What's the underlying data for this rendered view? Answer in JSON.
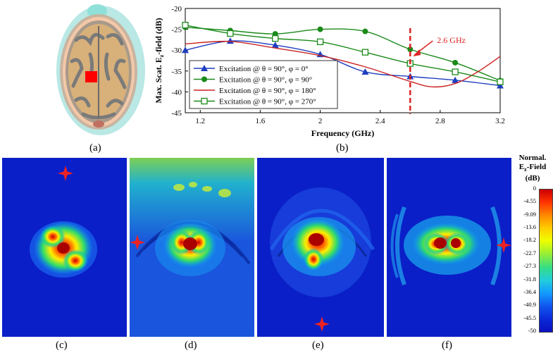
{
  "panels": {
    "a": "(a)",
    "b": "(b)",
    "c": "(c)",
    "d": "(d)",
    "e": "(e)",
    "f": "(f)"
  },
  "colors": {
    "series_phi0": "#1f3fbf",
    "series_phi90": "#1a8a1a",
    "series_phi180": "#cc2222",
    "series_phi270": "#1a8a1a",
    "marker_line": "#dd2222",
    "field_background": "#0a1fc8",
    "source_star": "#ee2222",
    "brain_skin": "#f4c8a8",
    "brain_gray": "#808080",
    "brain_white": "#d8b07a",
    "cyan_shell": "#7fd6d0",
    "target_red": "#ff0000"
  },
  "chart_data": {
    "type": "line",
    "xlabel": "Frequency (GHz)",
    "ylabel": "Max. Scat. Ez-field (dB)",
    "ylabel_parts": [
      "Max. Scat. E",
      "z",
      "-field (dB)"
    ],
    "xlim": [
      1.1,
      3.2
    ],
    "ylim": [
      -45,
      -20
    ],
    "xticks": [
      1.2,
      1.6,
      2.0,
      2.4,
      2.8,
      3.2
    ],
    "xtick_labels": [
      "1.2",
      "1.6",
      "2",
      "2.4",
      "2.8",
      "3.2"
    ],
    "yticks": [
      -45,
      -40,
      -35,
      -30,
      -25,
      -20
    ],
    "ytick_labels": [
      "-45",
      "-40",
      "-35",
      "-30",
      "-25",
      "-20"
    ],
    "grid": false,
    "legend_position": "bottom-left",
    "annotation": {
      "text": "2.6 GHz",
      "x": 2.6
    },
    "series": [
      {
        "name": "Excitation @ θ = 90°, φ = 0°",
        "marker": "triangle",
        "x": [
          1.1,
          1.4,
          1.7,
          2.0,
          2.3,
          2.6,
          2.9,
          3.2
        ],
        "y": [
          -30.0,
          -27.8,
          -28.8,
          -31.0,
          -35.2,
          -36.3,
          -37.2,
          -38.5
        ]
      },
      {
        "name": "Excitation @ θ = 90°, φ = 90°",
        "marker": "circle",
        "x": [
          1.1,
          1.4,
          1.7,
          2.0,
          2.3,
          2.6,
          2.9,
          3.2
        ],
        "y": [
          -24.5,
          -25.3,
          -26.1,
          -25.0,
          -25.5,
          -29.8,
          -33.0,
          -37.3
        ]
      },
      {
        "name": "Excitation @ θ = 90°, φ = 180°",
        "marker": "none",
        "x": [
          1.1,
          1.4,
          1.7,
          2.0,
          2.3,
          2.6,
          2.75,
          2.9,
          3.05,
          3.2
        ],
        "y": [
          -28.5,
          -27.9,
          -29.5,
          -31.3,
          -34.0,
          -37.5,
          -38.8,
          -38.0,
          -35.2,
          -31.5
        ]
      },
      {
        "name": "Excitation @ θ = 90°, φ = 270°",
        "marker": "square-open",
        "x": [
          1.1,
          1.4,
          1.7,
          2.0,
          2.3,
          2.6,
          2.9,
          3.2
        ],
        "y": [
          -24.0,
          -26.0,
          -27.2,
          -28.0,
          -30.5,
          -33.2,
          -35.2,
          -37.6
        ]
      }
    ]
  },
  "colorbar": {
    "title_parts": [
      "Normal.",
      "E",
      "z",
      "-Field",
      "(dB)"
    ],
    "tick_labels": [
      "0",
      "-4.55",
      "-9.09",
      "-13.6",
      "-18.2",
      "-22.7",
      "-27.3",
      "-31.8",
      "-36.4",
      "-40.9",
      "-45.5",
      "-50"
    ]
  }
}
